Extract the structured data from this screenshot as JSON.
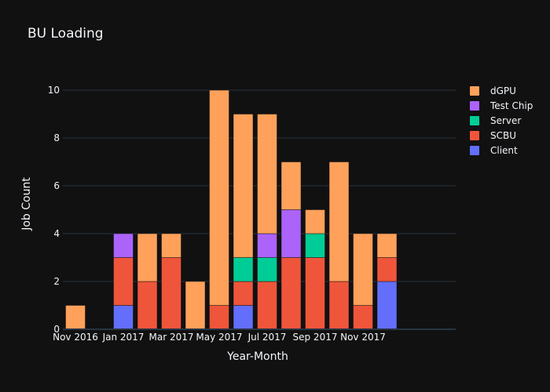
{
  "title": "BU Loading",
  "colors": {
    "background": "#111111",
    "grid": "#283442",
    "text": "#f2f5fa"
  },
  "chart_data": {
    "type": "bar",
    "barmode": "stack",
    "title": "BU Loading",
    "xlabel": "Year-Month",
    "ylabel": "Job Count",
    "categories": [
      "Nov 2016",
      "Dec 2016",
      "Jan 2017",
      "Feb 2017",
      "Mar 2017",
      "Apr 2017",
      "May 2017",
      "Jun 2017",
      "Jul 2017",
      "Aug 2017",
      "Sep 2017",
      "Oct 2017",
      "Nov 2017",
      "Dec 2017"
    ],
    "x_tick_labels": [
      "Nov 2016",
      "Jan 2017",
      "Mar 2017",
      "May 2017",
      "Jul 2017",
      "Sep 2017",
      "Nov 2017"
    ],
    "x_tick_categories": [
      "Nov 2016",
      "Jan 2017",
      "Mar 2017",
      "May 2017",
      "Jul 2017",
      "Sep 2017",
      "Nov 2017"
    ],
    "ylim": [
      0,
      11.5
    ],
    "y_ticks": [
      0,
      2,
      4,
      6,
      8,
      10
    ],
    "grid": true,
    "legend_position": "top-right",
    "series": [
      {
        "name": "Client",
        "color": "#636efa",
        "values": [
          0,
          0,
          1,
          0,
          0,
          0,
          0,
          1,
          0,
          0,
          0,
          0,
          0,
          2
        ]
      },
      {
        "name": "SCBU",
        "color": "#ef553b",
        "values": [
          0,
          0,
          2,
          2,
          3,
          0,
          1,
          1,
          2,
          3,
          3,
          2,
          1,
          1
        ]
      },
      {
        "name": "Server",
        "color": "#00cc96",
        "values": [
          0,
          0,
          0,
          0,
          0,
          0,
          0,
          1,
          1,
          0,
          1,
          0,
          0,
          0
        ]
      },
      {
        "name": "Test Chip",
        "color": "#ab63fa",
        "values": [
          0,
          0,
          1,
          0,
          0,
          0,
          0,
          0,
          1,
          2,
          0,
          0,
          0,
          0
        ]
      },
      {
        "name": "dGPU",
        "color": "#ffa15a",
        "values": [
          1,
          0,
          0,
          2,
          1,
          2,
          9,
          6,
          5,
          2,
          1,
          5,
          3,
          1
        ]
      }
    ]
  }
}
